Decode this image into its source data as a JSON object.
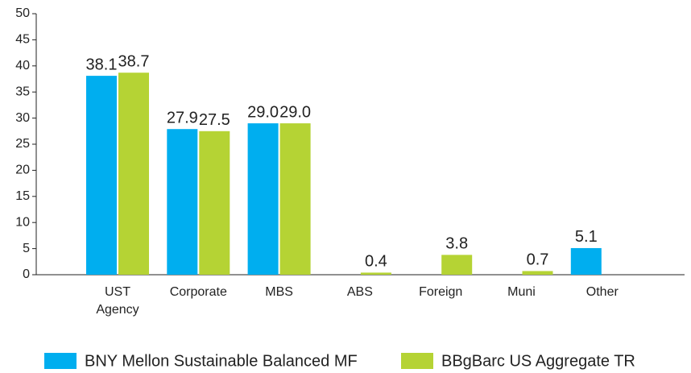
{
  "chart_data": {
    "type": "bar",
    "categories": [
      "UST Agency",
      "Corporate",
      "MBS",
      "ABS",
      "Foreign",
      "Muni",
      "Other"
    ],
    "series": [
      {
        "name": "BNY Mellon Sustainable Balanced MF",
        "color": "#00aeef",
        "values": [
          38.1,
          27.9,
          29.0,
          null,
          null,
          null,
          5.1
        ],
        "value_labels": [
          "38.1",
          "27.9",
          "29.0",
          null,
          null,
          null,
          "5.1"
        ]
      },
      {
        "name": "BBgBarc US Aggregate TR",
        "color": "#b5d334",
        "values": [
          38.7,
          27.5,
          29.0,
          0.4,
          3.8,
          0.7,
          null
        ],
        "value_labels": [
          "38.7",
          "27.5",
          "29.0",
          "0.4",
          "3.8",
          "0.7",
          null
        ]
      }
    ],
    "ylim": [
      0,
      50
    ],
    "yticks": [
      0,
      5,
      10,
      15,
      20,
      25,
      30,
      35,
      40,
      45,
      50
    ],
    "legend": "bottom"
  }
}
